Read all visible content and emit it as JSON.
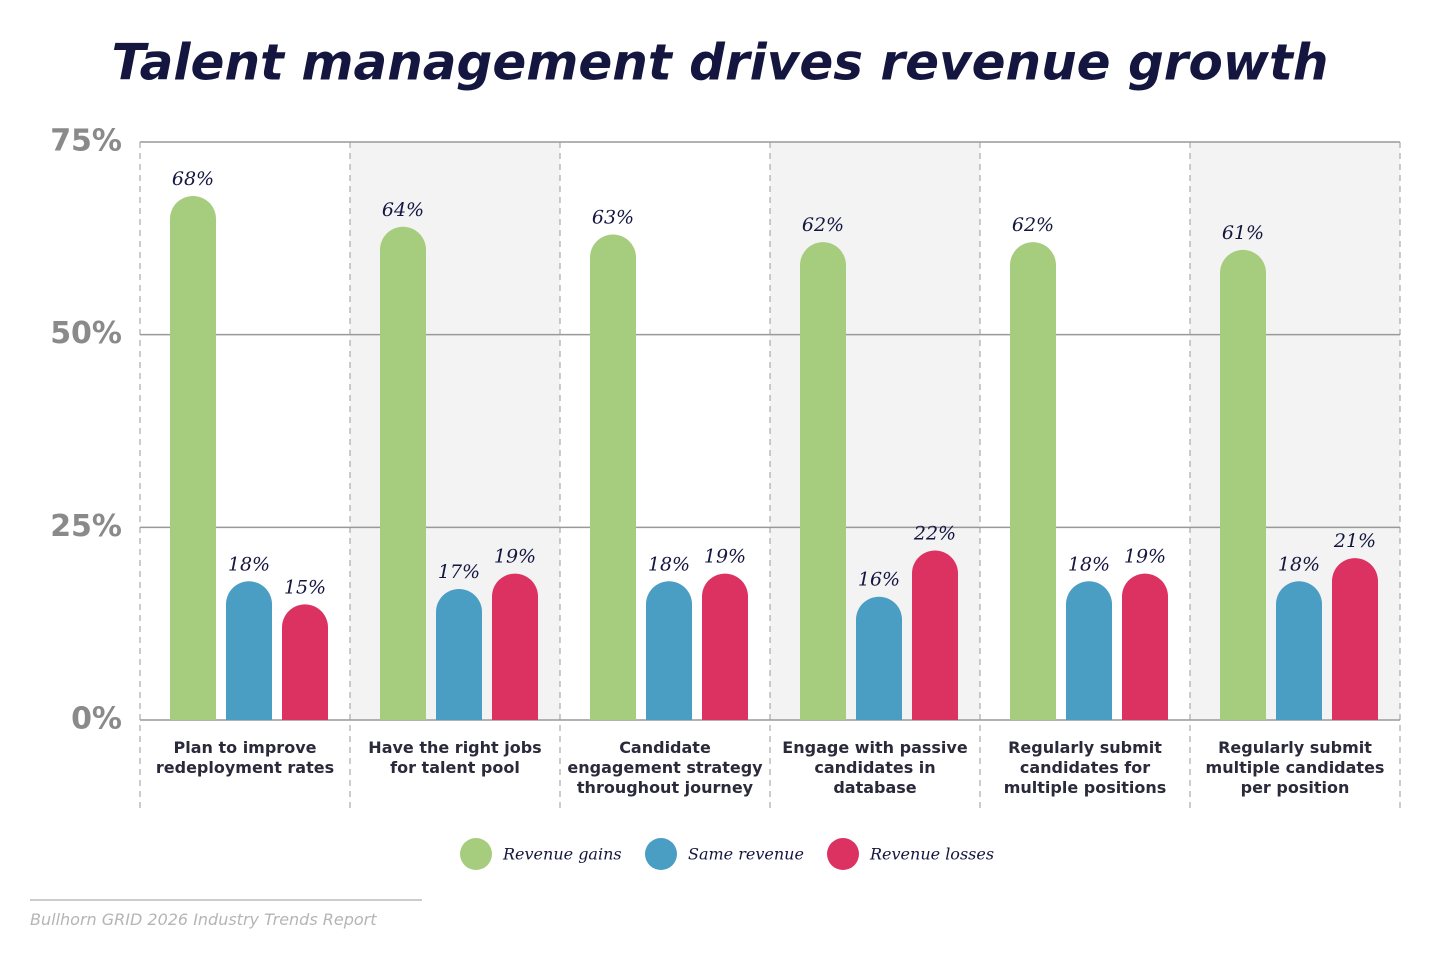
{
  "chart_data": {
    "type": "bar",
    "title": "Talent management drives revenue growth",
    "categories": [
      "Plan to improve redeployment rates",
      "Have the right jobs for talent pool",
      "Candidate engagement strategy throughout journey",
      "Engage with passive candidates in database",
      "Regularly submit candidates for multiple positions",
      "Regularly submit multiple candidates per position"
    ],
    "series": [
      {
        "name": "Revenue gains",
        "color": "#a6cd7e",
        "values": [
          68,
          64,
          63,
          62,
          62,
          61
        ],
        "value_labels": [
          "68%",
          "64%",
          "63%",
          "62%",
          "62%",
          "61%"
        ]
      },
      {
        "name": "Same revenue",
        "color": "#4a9ec4",
        "values": [
          18,
          17,
          18,
          16,
          18,
          18
        ],
        "value_labels": [
          "18%",
          "17%",
          "18%",
          "16%",
          "18%",
          "18%"
        ]
      },
      {
        "name": "Revenue losses",
        "color": "#dc3262",
        "values": [
          15,
          19,
          19,
          22,
          19,
          21
        ],
        "value_labels": [
          "15%",
          "19%",
          "19%",
          "22%",
          "19%",
          "21%"
        ]
      }
    ],
    "ylim": [
      0,
      75
    ],
    "yticks": [
      {
        "value": 0,
        "label": "0%"
      },
      {
        "value": 25,
        "label": "25%"
      },
      {
        "value": 50,
        "label": "50%"
      },
      {
        "value": 75,
        "label": "75%"
      }
    ],
    "grid": true,
    "legend": "bottom",
    "source": "Bullhorn GRID 2026 Industry Trends Report"
  }
}
